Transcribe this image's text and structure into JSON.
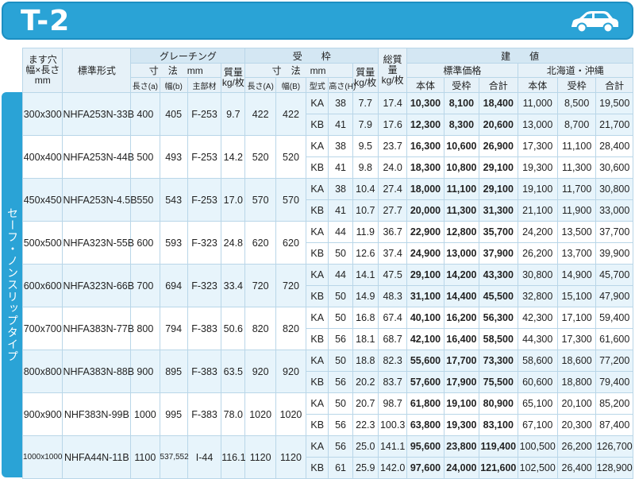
{
  "title": "T-2",
  "side_label": "セーフ・ノンスリップタイプ",
  "header": {
    "opening": "ます穴\n幅×長さ\nmm",
    "model": "標準形式",
    "grating": "グレーチング",
    "dims": "寸　法　mm",
    "mass": "質量\nkg/枚",
    "length_a": "長さ(a)",
    "width_b": "幅(b)",
    "main_member": "主部材",
    "frame": "受　　枠",
    "frame_dims": "寸　法　mm",
    "frame_length_a": "長さ(A)",
    "frame_width_b": "幅(B)",
    "type": "型式",
    "height_h": "高さ(H)",
    "total_mass": "総質量\nkg/枚",
    "price": "建　　値",
    "standard_price": "標準価格",
    "hokkaido": "北海道・沖縄",
    "body": "本体",
    "frame_short": "受枠",
    "total": "合計"
  },
  "rows": [
    {
      "size": "300x300",
      "model": "NHFA253N-33B",
      "a": "400",
      "b": "405",
      "member": "F-253",
      "mass": "9.7",
      "fa": "422",
      "fb": "422",
      "sub": [
        {
          "type": "KA",
          "h": "38",
          "fmass": "7.7",
          "total_mass": "17.4",
          "s_body": "10,300",
          "s_frame": "8,100",
          "s_total": "18,400",
          "h_body": "11,000",
          "h_frame": "8,500",
          "h_total": "19,500"
        },
        {
          "type": "KB",
          "h": "41",
          "fmass": "7.9",
          "total_mass": "17.6",
          "s_body": "12,300",
          "s_frame": "8,300",
          "s_total": "20,600",
          "h_body": "13,000",
          "h_frame": "8,700",
          "h_total": "21,700"
        }
      ]
    },
    {
      "size": "400x400",
      "model": "NHFA253N-44B",
      "a": "500",
      "b": "493",
      "member": "F-253",
      "mass": "14.2",
      "fa": "520",
      "fb": "520",
      "sub": [
        {
          "type": "KA",
          "h": "38",
          "fmass": "9.5",
          "total_mass": "23.7",
          "s_body": "16,300",
          "s_frame": "10,600",
          "s_total": "26,900",
          "h_body": "17,300",
          "h_frame": "11,100",
          "h_total": "28,400"
        },
        {
          "type": "KB",
          "h": "41",
          "fmass": "9.8",
          "total_mass": "24.0",
          "s_body": "18,300",
          "s_frame": "10,800",
          "s_total": "29,100",
          "h_body": "19,300",
          "h_frame": "11,300",
          "h_total": "30,600"
        }
      ]
    },
    {
      "size": "450x450",
      "model": "NHFA253N-4.5B",
      "a": "550",
      "b": "543",
      "member": "F-253",
      "mass": "17.0",
      "fa": "570",
      "fb": "570",
      "sub": [
        {
          "type": "KA",
          "h": "38",
          "fmass": "10.4",
          "total_mass": "27.4",
          "s_body": "18,000",
          "s_frame": "11,100",
          "s_total": "29,100",
          "h_body": "19,100",
          "h_frame": "11,700",
          "h_total": "30,800"
        },
        {
          "type": "KB",
          "h": "41",
          "fmass": "10.7",
          "total_mass": "27.7",
          "s_body": "20,000",
          "s_frame": "11,300",
          "s_total": "31,300",
          "h_body": "21,100",
          "h_frame": "11,900",
          "h_total": "33,000"
        }
      ]
    },
    {
      "size": "500x500",
      "model": "NHFA323N-55B",
      "a": "600",
      "b": "593",
      "member": "F-323",
      "mass": "24.8",
      "fa": "620",
      "fb": "620",
      "sub": [
        {
          "type": "KA",
          "h": "44",
          "fmass": "11.9",
          "total_mass": "36.7",
          "s_body": "22,900",
          "s_frame": "12,800",
          "s_total": "35,700",
          "h_body": "24,200",
          "h_frame": "13,500",
          "h_total": "37,700"
        },
        {
          "type": "KB",
          "h": "50",
          "fmass": "12.6",
          "total_mass": "37.4",
          "s_body": "24,900",
          "s_frame": "13,000",
          "s_total": "37,900",
          "h_body": "26,200",
          "h_frame": "13,700",
          "h_total": "39,900"
        }
      ]
    },
    {
      "size": "600x600",
      "model": "NHFA323N-66B",
      "a": "700",
      "b": "694",
      "member": "F-323",
      "mass": "33.4",
      "fa": "720",
      "fb": "720",
      "sub": [
        {
          "type": "KA",
          "h": "44",
          "fmass": "14.1",
          "total_mass": "47.5",
          "s_body": "29,100",
          "s_frame": "14,200",
          "s_total": "43,300",
          "h_body": "30,800",
          "h_frame": "14,900",
          "h_total": "45,700"
        },
        {
          "type": "KB",
          "h": "50",
          "fmass": "14.9",
          "total_mass": "48.3",
          "s_body": "31,100",
          "s_frame": "14,400",
          "s_total": "45,500",
          "h_body": "32,800",
          "h_frame": "15,100",
          "h_total": "47,900"
        }
      ]
    },
    {
      "size": "700x700",
      "model": "NHFA383N-77B",
      "a": "800",
      "b": "794",
      "member": "F-383",
      "mass": "50.6",
      "fa": "820",
      "fb": "820",
      "sub": [
        {
          "type": "KA",
          "h": "50",
          "fmass": "16.8",
          "total_mass": "67.4",
          "s_body": "40,100",
          "s_frame": "16,200",
          "s_total": "56,300",
          "h_body": "42,300",
          "h_frame": "17,100",
          "h_total": "59,400"
        },
        {
          "type": "KB",
          "h": "56",
          "fmass": "18.1",
          "total_mass": "68.7",
          "s_body": "42,100",
          "s_frame": "16,400",
          "s_total": "58,500",
          "h_body": "44,300",
          "h_frame": "17,300",
          "h_total": "61,600"
        }
      ]
    },
    {
      "size": "800x800",
      "model": "NHFA383N-88B",
      "a": "900",
      "b": "895",
      "member": "F-383",
      "mass": "63.5",
      "fa": "920",
      "fb": "920",
      "sub": [
        {
          "type": "KA",
          "h": "50",
          "fmass": "18.8",
          "total_mass": "82.3",
          "s_body": "55,600",
          "s_frame": "17,700",
          "s_total": "73,300",
          "h_body": "58,600",
          "h_frame": "18,600",
          "h_total": "77,200"
        },
        {
          "type": "KB",
          "h": "56",
          "fmass": "20.2",
          "total_mass": "83.7",
          "s_body": "57,600",
          "s_frame": "17,900",
          "s_total": "75,500",
          "h_body": "60,600",
          "h_frame": "18,800",
          "h_total": "79,400"
        }
      ]
    },
    {
      "size": "900x900",
      "model": "NHF383N-99B",
      "a": "1000",
      "b": "995",
      "member": "F-383",
      "mass": "78.0",
      "fa": "1020",
      "fb": "1020",
      "sub": [
        {
          "type": "KA",
          "h": "50",
          "fmass": "20.7",
          "total_mass": "98.7",
          "s_body": "61,800",
          "s_frame": "19,100",
          "s_total": "80,900",
          "h_body": "65,100",
          "h_frame": "20,100",
          "h_total": "85,200"
        },
        {
          "type": "KB",
          "h": "56",
          "fmass": "22.3",
          "total_mass": "100.3",
          "s_body": "63,800",
          "s_frame": "19,300",
          "s_total": "83,100",
          "h_body": "67,100",
          "h_frame": "20,300",
          "h_total": "87,400"
        }
      ]
    },
    {
      "size": "1000x1000",
      "model": "NHFA44N-11B",
      "a": "1100",
      "b": "537,552",
      "member": "I-44",
      "mass": "116.1",
      "fa": "1120",
      "fb": "1120",
      "sub": [
        {
          "type": "KA",
          "h": "56",
          "fmass": "25.0",
          "total_mass": "141.1",
          "s_body": "95,600",
          "s_frame": "23,800",
          "s_total": "119,400",
          "h_body": "100,500",
          "h_frame": "26,200",
          "h_total": "126,700"
        },
        {
          "type": "KB",
          "h": "61",
          "fmass": "25.9",
          "total_mass": "142.0",
          "s_body": "97,600",
          "s_frame": "24,000",
          "s_total": "121,600",
          "h_body": "102,500",
          "h_frame": "26,400",
          "h_total": "128,900"
        }
      ]
    }
  ]
}
